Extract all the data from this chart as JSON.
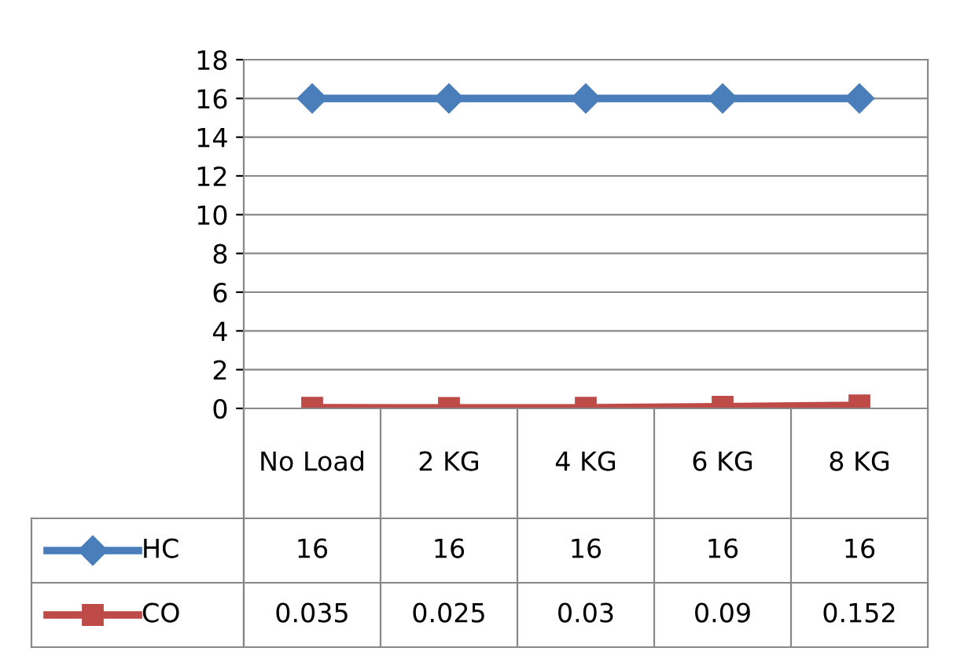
{
  "chart_data": {
    "type": "line",
    "categories": [
      "No Load",
      "2 KG",
      "4 KG",
      "6 KG",
      "8 KG"
    ],
    "series": [
      {
        "name": "HC",
        "color": "#4a7ebb",
        "marker": "diamond",
        "values": [
          16,
          16,
          16,
          16,
          16
        ]
      },
      {
        "name": "CO",
        "color": "#be4b48",
        "marker": "square",
        "values": [
          0.035,
          0.025,
          0.03,
          0.09,
          0.152
        ]
      }
    ],
    "ylim": [
      0,
      18
    ],
    "yticks": [
      0,
      2,
      4,
      6,
      8,
      10,
      12,
      14,
      16,
      18
    ],
    "grid": "y",
    "data_labels": true,
    "legend": "bottom",
    "line_style": "solid"
  }
}
